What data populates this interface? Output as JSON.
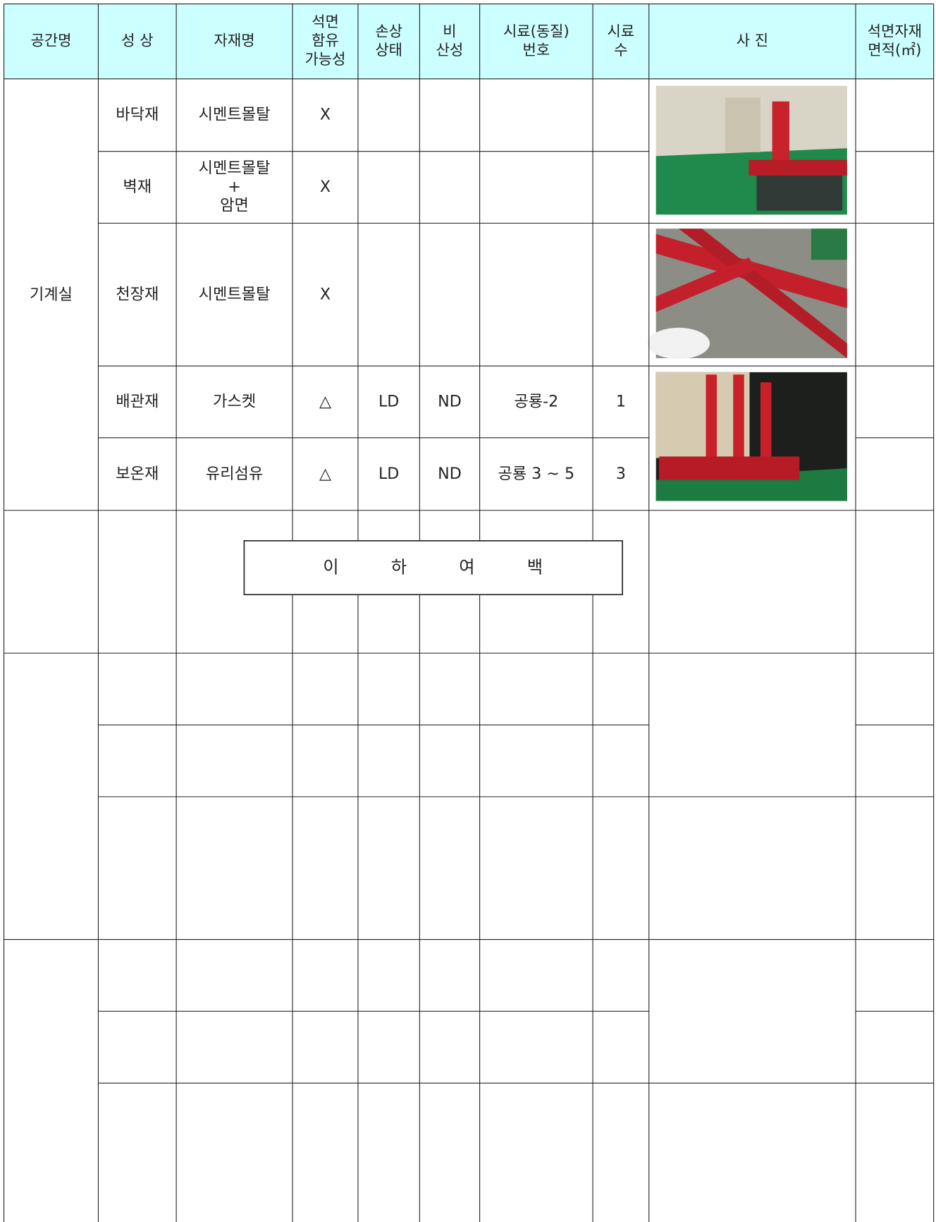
{
  "header": [
    "공간명",
    "성 상",
    "자재명",
    [
      "석면",
      "함유",
      "가능성"
    ],
    [
      "손상",
      "상태"
    ],
    [
      "비",
      "산성"
    ],
    [
      "시료(동질)",
      "번호"
    ],
    [
      "시료",
      "수"
    ],
    "사 진",
    [
      "석면자재",
      "면적(㎡)"
    ]
  ],
  "space": "기계실",
  "rows": [
    [
      "바닥재",
      "시멘트몰탈",
      "X"
    ],
    [
      "벽재",
      [
        "시멘트몰탈",
        "+",
        "암면"
      ],
      "X"
    ],
    [
      "천장재",
      "시멘트몰탈",
      "X"
    ],
    [
      "배관재",
      "가스켓",
      "△",
      "LD",
      "ND",
      "공룡-2",
      "1"
    ],
    [
      "보온재",
      "유리섬유",
      "△",
      "LD",
      "ND",
      "공룡 3 ~ 5",
      "3"
    ]
  ],
  "note": "이 하 여 백"
}
